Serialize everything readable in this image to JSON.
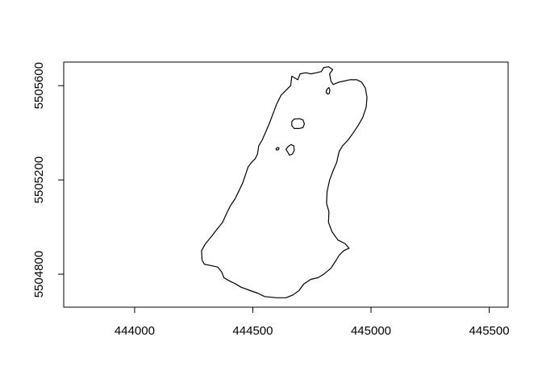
{
  "chart_data": {
    "type": "map",
    "title": "",
    "xlabel": "",
    "ylabel": "",
    "xlim": [
      443700,
      445580
    ],
    "ylim": [
      5504660,
      5505700
    ],
    "x_ticks": [
      444000,
      444500,
      445000,
      445500
    ],
    "y_ticks": [
      5504800,
      5505200,
      5505600
    ],
    "x_tick_labels": [
      "444000",
      "444500",
      "445000",
      "445500"
    ],
    "y_tick_labels": [
      "5504800",
      "5505200",
      "5505600"
    ],
    "grid": false,
    "features": [
      {
        "kind": "lake-shoreline",
        "coords": [
          [
            444640,
            5504700
          ],
          [
            444670,
            5504712
          ],
          [
            444695,
            5504730
          ],
          [
            444715,
            5504758
          ],
          [
            444745,
            5504778
          ],
          [
            444775,
            5504785
          ],
          [
            444800,
            5504800
          ],
          [
            444830,
            5504825
          ],
          [
            444850,
            5504855
          ],
          [
            444865,
            5504880
          ],
          [
            444885,
            5504900
          ],
          [
            444907,
            5504910
          ],
          [
            444890,
            5504930
          ],
          [
            444860,
            5504945
          ],
          [
            444835,
            5504980
          ],
          [
            444820,
            5505020
          ],
          [
            444822,
            5505065
          ],
          [
            444812,
            5505100
          ],
          [
            444814,
            5505150
          ],
          [
            444825,
            5505200
          ],
          [
            444840,
            5505240
          ],
          [
            444855,
            5505275
          ],
          [
            444865,
            5505320
          ],
          [
            444880,
            5505345
          ],
          [
            444905,
            5505372
          ],
          [
            444925,
            5505400
          ],
          [
            444945,
            5505430
          ],
          [
            444965,
            5505465
          ],
          [
            444980,
            5505510
          ],
          [
            444983,
            5505550
          ],
          [
            444976,
            5505590
          ],
          [
            444960,
            5505615
          ],
          [
            444940,
            5505625
          ],
          [
            444910,
            5505625
          ],
          [
            444888,
            5505620
          ],
          [
            444865,
            5505615
          ],
          [
            444840,
            5505605
          ],
          [
            444830,
            5505620
          ],
          [
            444825,
            5505650
          ],
          [
            444838,
            5505668
          ],
          [
            444820,
            5505680
          ],
          [
            444800,
            5505677
          ],
          [
            444790,
            5505660
          ],
          [
            444770,
            5505655
          ],
          [
            444745,
            5505650
          ],
          [
            444725,
            5505655
          ],
          [
            444700,
            5505650
          ],
          [
            444690,
            5505625
          ],
          [
            444665,
            5505640
          ],
          [
            444660,
            5505600
          ],
          [
            444640,
            5505580
          ],
          [
            444620,
            5505560
          ],
          [
            444600,
            5505520
          ],
          [
            444585,
            5505480
          ],
          [
            444570,
            5505440
          ],
          [
            444555,
            5505405
          ],
          [
            444540,
            5505370
          ],
          [
            444525,
            5505345
          ],
          [
            444520,
            5505310
          ],
          [
            444510,
            5505290
          ],
          [
            444495,
            5505275
          ],
          [
            444480,
            5505255
          ],
          [
            444470,
            5505225
          ],
          [
            444458,
            5505190
          ],
          [
            444442,
            5505155
          ],
          [
            444425,
            5505120
          ],
          [
            444405,
            5505090
          ],
          [
            444390,
            5505060
          ],
          [
            444372,
            5505020
          ],
          [
            444348,
            5504990
          ],
          [
            444325,
            5504960
          ],
          [
            444300,
            5504930
          ],
          [
            444283,
            5504900
          ],
          [
            444285,
            5504860
          ],
          [
            444295,
            5504842
          ],
          [
            444330,
            5504835
          ],
          [
            444352,
            5504830
          ],
          [
            444368,
            5504810
          ],
          [
            444378,
            5504785
          ],
          [
            444400,
            5504772
          ],
          [
            444425,
            5504760
          ],
          [
            444450,
            5504745
          ],
          [
            444490,
            5504730
          ],
          [
            444520,
            5504720
          ],
          [
            444550,
            5504705
          ],
          [
            444600,
            5504700
          ],
          [
            444640,
            5504700
          ]
        ]
      },
      {
        "kind": "island",
        "coords": [
          [
            444665,
            5505430
          ],
          [
            444675,
            5505418
          ],
          [
            444695,
            5505418
          ],
          [
            444712,
            5505422
          ],
          [
            444718,
            5505438
          ],
          [
            444712,
            5505455
          ],
          [
            444695,
            5505460
          ],
          [
            444675,
            5505458
          ],
          [
            444665,
            5505448
          ],
          [
            444665,
            5505430
          ]
        ]
      },
      {
        "kind": "island",
        "coords": [
          [
            444640,
            5505330
          ],
          [
            444650,
            5505342
          ],
          [
            444662,
            5505350
          ],
          [
            444673,
            5505345
          ],
          [
            444675,
            5505325
          ],
          [
            444668,
            5505310
          ],
          [
            444655,
            5505305
          ],
          [
            444648,
            5505318
          ],
          [
            444640,
            5505330
          ]
        ]
      },
      {
        "kind": "island",
        "coords": [
          [
            444598,
            5505333
          ],
          [
            444605,
            5505338
          ],
          [
            444611,
            5505335
          ],
          [
            444608,
            5505328
          ],
          [
            444600,
            5505327
          ],
          [
            444598,
            5505333
          ]
        ]
      },
      {
        "kind": "island",
        "coords": [
          [
            444810,
            5505573
          ],
          [
            444814,
            5505585
          ],
          [
            444822,
            5505592
          ],
          [
            444826,
            5505580
          ],
          [
            444823,
            5505566
          ],
          [
            444815,
            5505565
          ],
          [
            444810,
            5505573
          ]
        ]
      }
    ]
  }
}
